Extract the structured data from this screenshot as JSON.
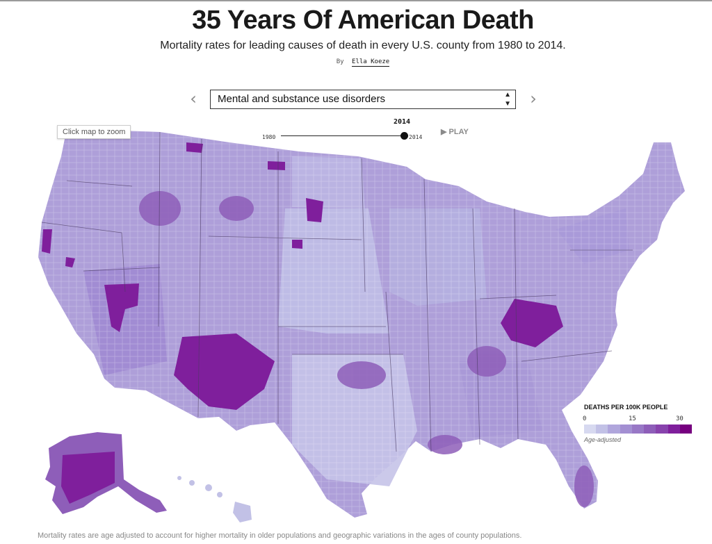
{
  "header": {
    "title": "35 Years Of American Death",
    "subtitle": "Mortality rates for leading causes of death in every U.S. county from 1980 to 2014.",
    "byline_prefix": "By",
    "author": "Ella Koeze"
  },
  "controls": {
    "prev_icon": "chevron-left-icon",
    "next_icon": "chevron-right-icon",
    "cause_selected": "Mental and substance use disorders",
    "year_current": "2014",
    "year_start": "1980",
    "year_end": "2014",
    "year_progress": 1.0,
    "play_label": "PLAY",
    "play_icon": "play-icon",
    "zoom_hint": "Click map to zoom"
  },
  "legend": {
    "title": "DEATHS PER 100K PEOPLE",
    "ticks": [
      "0",
      "15",
      "30"
    ],
    "note": "Age-adjusted",
    "colors": [
      "#d7d9f0",
      "#c2c1e6",
      "#b0a6dc",
      "#a38fd2",
      "#9878c6",
      "#8e5eb9",
      "#8843ad",
      "#7f1f9c",
      "#76007f"
    ]
  },
  "footnote": "Mortality rates are age adjusted to account for higher mortality in older populations and geographic variations in the ages of county populations."
}
